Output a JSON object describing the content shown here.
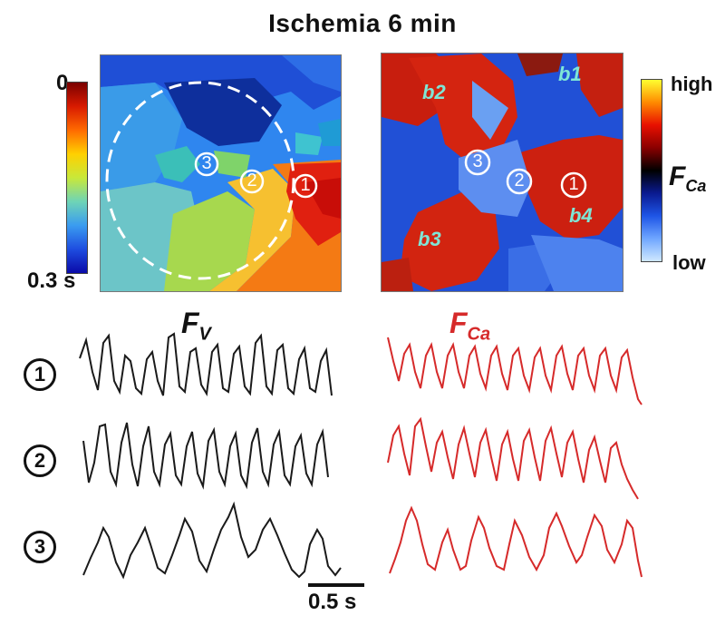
{
  "figure": {
    "title": "Ischemia  6 min",
    "left_colorbar": {
      "top_label": "0",
      "bottom_label": "0.3 s"
    },
    "right_colorbar": {
      "top_label": "high",
      "mid_label": "F",
      "mid_sub": "Ca",
      "bottom_label": "low"
    },
    "site_labels": [
      "1",
      "2",
      "3"
    ],
    "region_labels": [
      "b1",
      "b2",
      "b3",
      "b4"
    ],
    "voltage_label": {
      "main": "F",
      "sub": "V"
    },
    "calcium_label": {
      "main": "F",
      "sub": "Ca"
    },
    "scale_bar": "0.5 s",
    "row_labels": [
      "1",
      "2",
      "3"
    ],
    "colors": {
      "voltage_trace": "#1a1a1a",
      "calcium_trace": "#d62a2a",
      "region_text": "#7fe6d6"
    }
  }
}
